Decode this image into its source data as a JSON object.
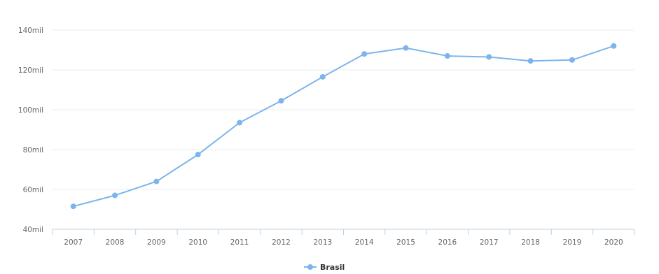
{
  "chart_data": {
    "type": "line",
    "title": "",
    "xlabel": "",
    "ylabel": "",
    "categories": [
      "2007",
      "2008",
      "2009",
      "2010",
      "2011",
      "2012",
      "2013",
      "2014",
      "2015",
      "2016",
      "2017",
      "2018",
      "2019",
      "2020"
    ],
    "series": [
      {
        "name": "Brasil",
        "color": "#7cb5ec",
        "values": [
          51.5,
          57,
          64,
          77.5,
          93.5,
          104.5,
          116.5,
          128,
          131,
          127,
          126.5,
          124.5,
          125,
          132
        ]
      }
    ],
    "ylim": [
      40,
      140
    ],
    "yticks": [
      40,
      60,
      80,
      100,
      120,
      140
    ],
    "ytick_labels": [
      "40mil",
      "60mil",
      "80mil",
      "100mil",
      "120mil",
      "140mil"
    ],
    "grid": true,
    "legend": "bottom-center"
  }
}
